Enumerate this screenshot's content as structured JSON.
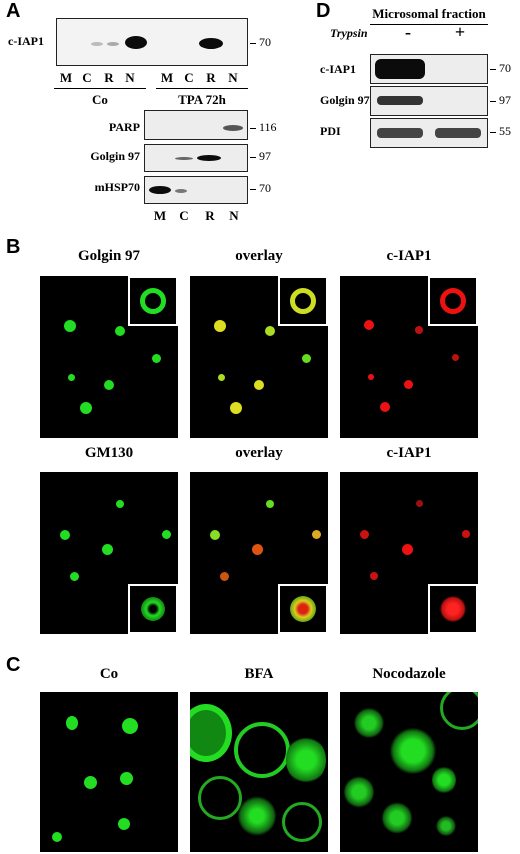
{
  "figure": {
    "panel_letters": [
      "A",
      "B",
      "C",
      "D"
    ]
  },
  "panel_a": {
    "top_blot": {
      "label": "c-IAP1",
      "mw": "70"
    },
    "lanes_top": [
      "M",
      "C",
      "R",
      "N",
      "M",
      "C",
      "R",
      "N"
    ],
    "groups": [
      "Co",
      "TPA 72h"
    ],
    "marker_blots": [
      {
        "label": "PARP",
        "mw": "116"
      },
      {
        "label": "Golgin 97",
        "mw": "97"
      },
      {
        "label": "mHSP70",
        "mw": "70"
      }
    ],
    "lanes_bottom": [
      "M",
      "C",
      "R",
      "N"
    ]
  },
  "panel_d": {
    "title": "Microsomal fraction",
    "treatment_label": "Trypsin",
    "conditions": [
      "-",
      "+"
    ],
    "blots": [
      {
        "label": "c-IAP1",
        "mw": "70"
      },
      {
        "label": "Golgin  97",
        "mw": "97"
      },
      {
        "label": "PDI",
        "mw": "55"
      }
    ]
  },
  "panel_b": {
    "row1_titles": [
      "Golgin 97",
      "overlay",
      "c-IAP1"
    ],
    "row2_titles": [
      "GM130",
      "overlay",
      "c-IAP1"
    ]
  },
  "panel_c": {
    "titles": [
      "Co",
      "BFA",
      "Nocodazole"
    ]
  },
  "colors": {
    "green": "#22dd22",
    "red": "#ee1111",
    "yellow": "#dddd22",
    "background": "#000000"
  }
}
